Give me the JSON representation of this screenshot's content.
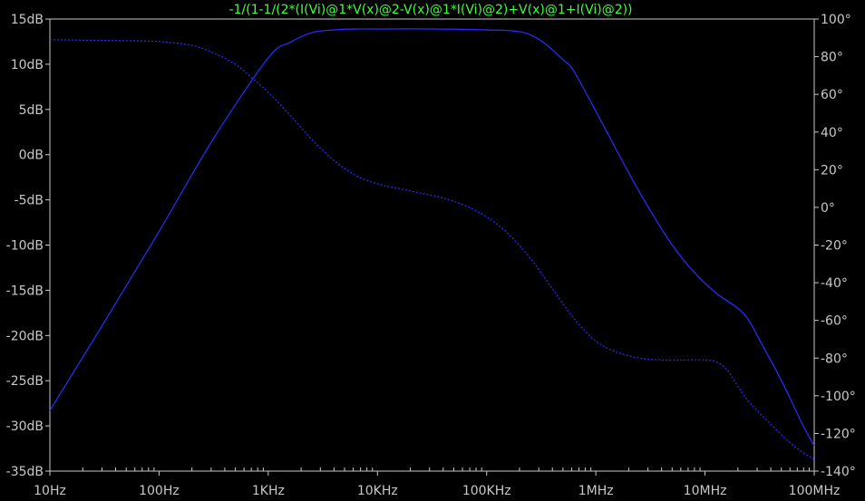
{
  "chart_data": {
    "type": "line",
    "title": "-1/(1-1/(2*(I(Vi)@1*V(x)@2-V(x)@1*I(Vi)@2)+V(x)@1+I(Vi)@2))",
    "x_scale": "log",
    "xlim": [
      10,
      100000000
    ],
    "x_ticks": [
      {
        "value": 10,
        "label": "10Hz"
      },
      {
        "value": 100,
        "label": "100Hz"
      },
      {
        "value": 1000,
        "label": "1KHz"
      },
      {
        "value": 10000,
        "label": "10KHz"
      },
      {
        "value": 100000,
        "label": "100KHz"
      },
      {
        "value": 1000000,
        "label": "1MHz"
      },
      {
        "value": 10000000,
        "label": "10MHz"
      },
      {
        "value": 100000000,
        "label": "100MHz"
      }
    ],
    "ylim": [
      -35,
      15
    ],
    "y_ticks": [
      {
        "value": 15,
        "label": "15dB"
      },
      {
        "value": 10,
        "label": "10dB"
      },
      {
        "value": 5,
        "label": "5dB"
      },
      {
        "value": 0,
        "label": "0dB"
      },
      {
        "value": -5,
        "label": "-5dB"
      },
      {
        "value": -10,
        "label": "-10dB"
      },
      {
        "value": -15,
        "label": "-15dB"
      },
      {
        "value": -20,
        "label": "-20dB"
      },
      {
        "value": -25,
        "label": "-25dB"
      },
      {
        "value": -30,
        "label": "-30dB"
      },
      {
        "value": -35,
        "label": "-35dB"
      }
    ],
    "y2lim": [
      -140,
      100
    ],
    "y2_ticks": [
      {
        "value": 100,
        "label": "100°"
      },
      {
        "value": 80,
        "label": "80°"
      },
      {
        "value": 60,
        "label": "60°"
      },
      {
        "value": 40,
        "label": "40°"
      },
      {
        "value": 20,
        "label": "20°"
      },
      {
        "value": 0,
        "label": "0°"
      },
      {
        "value": -20,
        "label": "-20°"
      },
      {
        "value": -40,
        "label": "-40°"
      },
      {
        "value": -60,
        "label": "-60°"
      },
      {
        "value": -80,
        "label": "-80°"
      },
      {
        "value": -100,
        "label": "-100°"
      },
      {
        "value": -120,
        "label": "-120°"
      },
      {
        "value": -140,
        "label": "-140°"
      }
    ],
    "series": [
      {
        "axis": "left",
        "style": "solid",
        "color": "#2c2cff",
        "x": [
          10,
          31.6,
          100,
          316,
          1000,
          1580,
          2510,
          3980,
          6310,
          10000,
          31600,
          100000,
          200000,
          316000,
          501000,
          631000,
          1000000,
          2000000,
          3160000,
          5010000,
          7940000,
          12600000,
          20000000,
          25100000,
          31600000,
          50100000,
          79400000,
          100000000
        ],
        "values": [
          -28.3,
          -18.5,
          -8.5,
          1.8,
          10.7,
          12.4,
          13.5,
          13.8,
          13.9,
          13.9,
          13.9,
          13.8,
          13.6,
          12.6,
          10.5,
          9.2,
          4.8,
          -2.0,
          -6.2,
          -10.0,
          -13.0,
          -15.3,
          -17.0,
          -18.3,
          -20.5,
          -25.0,
          -30.0,
          -32.2
        ]
      },
      {
        "axis": "right",
        "style": "dotted",
        "color": "#2c2cff",
        "x": [
          10,
          50,
          100,
          200,
          316,
          500,
          700,
          1000,
          1580,
          2510,
          3980,
          6310,
          10000,
          15800,
          25100,
          39800,
          63100,
          100000,
          158000,
          251000,
          398000,
          631000,
          1000000,
          1580000,
          2510000,
          3980000,
          6310000,
          10000000,
          12600000,
          15800000,
          20000000,
          25100000,
          39800000,
          63100000,
          100000000
        ],
        "values": [
          89,
          88.5,
          88,
          86,
          82,
          76,
          69,
          61,
          49,
          36,
          25,
          17,
          12.5,
          10,
          7.5,
          5,
          1,
          -5,
          -14,
          -27,
          -43,
          -59,
          -71,
          -77,
          -80,
          -81,
          -81,
          -81,
          -82,
          -86,
          -95,
          -103,
          -115,
          -126,
          -134
        ]
      }
    ]
  }
}
